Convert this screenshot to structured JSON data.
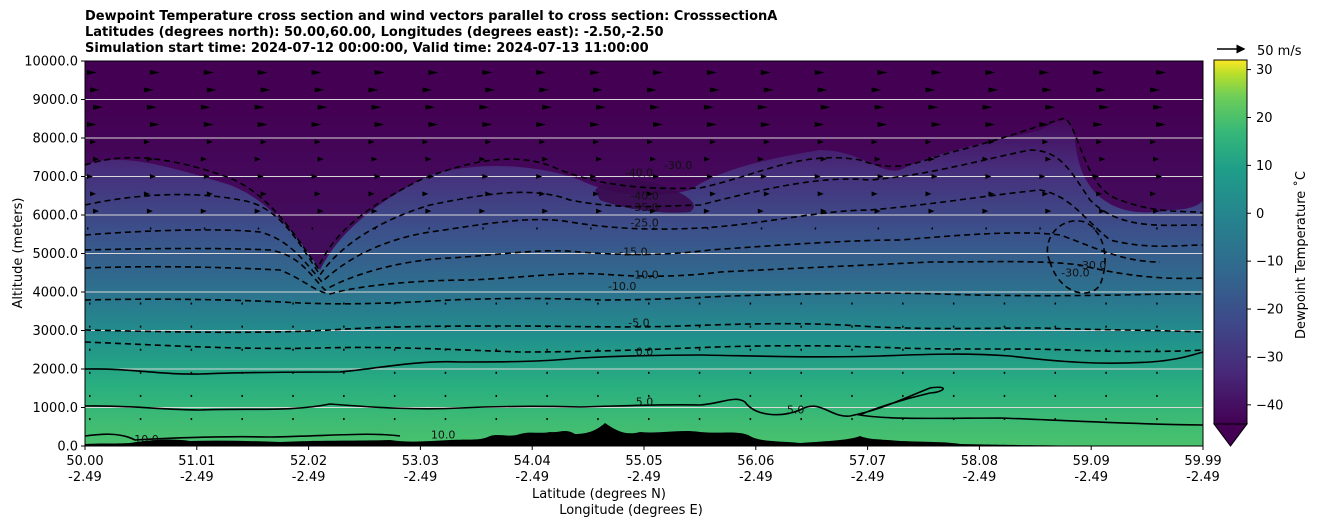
{
  "chart_data": {
    "type": "contour",
    "title_lines": [
      "Dewpoint Temperature cross section and wind vectors parallel to cross section: CrosssectionA",
      "Latitudes (degrees north): 50.00,60.00, Longitudes (degrees east): -2.50,-2.50",
      "Simulation start time: 2024-07-12 00:00:00, Valid time: 2024-07-13 11:00:00"
    ],
    "ylabel": "Altitude (meters)",
    "xlabel_lines": [
      "Latitude (degrees N)",
      "Longitude (degrees E)"
    ],
    "ylim": [
      0,
      10000
    ],
    "xlim": [
      50.0,
      59.99
    ],
    "yticks": [
      "0.0",
      "1000.0",
      "2000.0",
      "3000.0",
      "4000.0",
      "5000.0",
      "6000.0",
      "7000.0",
      "8000.0",
      "9000.0",
      "10000.0"
    ],
    "xticks_lat": [
      "50.00",
      "51.01",
      "52.02",
      "53.03",
      "54.04",
      "55.05",
      "56.06",
      "57.07",
      "58.08",
      "59.09",
      "59.99"
    ],
    "xticks_lon": [
      "-2.49",
      "-2.49",
      "-2.49",
      "-2.49",
      "-2.49",
      "-2.49",
      "-2.49",
      "-2.49",
      "-2.49",
      "-2.49",
      "-2.49"
    ],
    "grid": "horizontal",
    "colorbar": {
      "label": "Dewpoint Temperature ˚C",
      "ticks": [
        "30",
        "20",
        "10",
        "0",
        "−10",
        "−20",
        "−30",
        "−40"
      ],
      "range": [
        -44,
        32
      ],
      "colormap": "viridis",
      "extend": "min"
    },
    "quiver_key": "50 m/s",
    "contour_labels": [
      {
        "text": "-40.0",
        "lat": 54.95,
        "alt": 7000
      },
      {
        "text": "-30.0",
        "lat": 55.3,
        "alt": 7200
      },
      {
        "text": "-40.0",
        "lat": 55.0,
        "alt": 6400
      },
      {
        "text": "-35.0",
        "lat": 55.0,
        "alt": 6100
      },
      {
        "text": "-25.0",
        "lat": 55.0,
        "alt": 5700
      },
      {
        "text": "-15.0",
        "lat": 54.9,
        "alt": 4950
      },
      {
        "text": "-10.0",
        "lat": 55.0,
        "alt": 4350
      },
      {
        "text": "-10.0",
        "lat": 54.8,
        "alt": 4050
      },
      {
        "text": "-5.0",
        "lat": 54.95,
        "alt": 3100
      },
      {
        "text": "0.0",
        "lat": 55.0,
        "alt": 2350
      },
      {
        "text": "5.0",
        "lat": 55.0,
        "alt": 1050
      },
      {
        "text": "10.0",
        "lat": 50.55,
        "alt": 80
      },
      {
        "text": "10.0",
        "lat": 53.2,
        "alt": 200
      },
      {
        "text": "5.0",
        "lat": 56.35,
        "alt": 850
      },
      {
        "text": "-30.0",
        "lat": 58.85,
        "alt": 4400
      },
      {
        "text": "-30.0",
        "lat": 59.0,
        "alt": 4600
      }
    ],
    "contour_levels_dashed": [
      -40,
      -35,
      -30,
      -25,
      -20,
      -15,
      -10,
      -5
    ],
    "contour_levels_solid": [
      0,
      5,
      10
    ]
  }
}
